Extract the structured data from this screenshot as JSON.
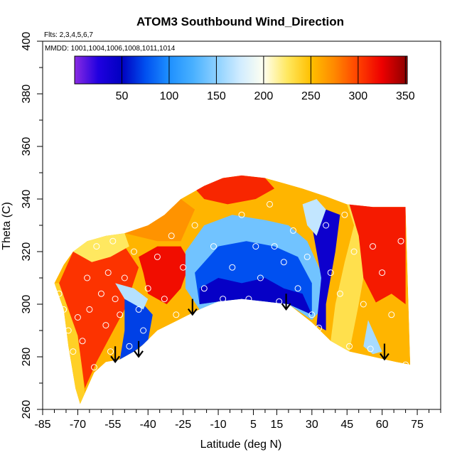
{
  "chart_data": {
    "type": "heatmap",
    "title": "ATOM3 Southbound Wind_Direction",
    "subtitle": "Flts: 2,3,4,5,6,7",
    "annotation": "MMDD: 1001,1004,1006,1008,1011,1014",
    "xlabel": "Latitude (deg N)",
    "ylabel": "Theta (C)",
    "xlim": [
      -85,
      85
    ],
    "ylim": [
      260,
      400
    ],
    "x_ticks": [
      "-85",
      "-70",
      "-55",
      "-40",
      "-25",
      "-10",
      "5",
      "15",
      "30",
      "45",
      "60",
      "75"
    ],
    "x_tick_values": [
      -85,
      -70,
      -55,
      -40,
      -25,
      -10,
      5,
      15,
      30,
      45,
      60,
      75
    ],
    "y_ticks": [
      "260",
      "280",
      "300",
      "320",
      "340",
      "360",
      "380",
      "400"
    ],
    "y_tick_values": [
      260,
      280,
      300,
      320,
      340,
      360,
      380,
      400
    ],
    "colorbar": {
      "range": [
        0,
        352
      ],
      "ticks": [
        "50",
        "100",
        "150",
        "200",
        "250",
        "300",
        "350"
      ],
      "tick_values": [
        50,
        100,
        150,
        200,
        250,
        300,
        350
      ],
      "colors": [
        {
          "value": 0,
          "color": "#8a2be2"
        },
        {
          "value": 25,
          "color": "#2000e0"
        },
        {
          "value": 50,
          "color": "#0000c0"
        },
        {
          "value": 75,
          "color": "#0050f0"
        },
        {
          "value": 100,
          "color": "#1e90ff"
        },
        {
          "value": 125,
          "color": "#48b0ff"
        },
        {
          "value": 150,
          "color": "#8cd0ff"
        },
        {
          "value": 175,
          "color": "#d0ecff"
        },
        {
          "value": 200,
          "color": "#fffff0"
        },
        {
          "value": 225,
          "color": "#ffe860"
        },
        {
          "value": 250,
          "color": "#ffc000"
        },
        {
          "value": 275,
          "color": "#ff8800"
        },
        {
          "value": 300,
          "color": "#ff4000"
        },
        {
          "value": 325,
          "color": "#ee0000"
        },
        {
          "value": 352,
          "color": "#8b0000"
        }
      ]
    },
    "upper_boundary": [
      {
        "lat": -80,
        "theta": 308
      },
      {
        "lat": -76,
        "theta": 315
      },
      {
        "lat": -72,
        "theta": 320
      },
      {
        "lat": -66,
        "theta": 324
      },
      {
        "lat": -58,
        "theta": 326
      },
      {
        "lat": -50,
        "theta": 327
      },
      {
        "lat": -40,
        "theta": 330
      },
      {
        "lat": -33,
        "theta": 334
      },
      {
        "lat": -26,
        "theta": 340
      },
      {
        "lat": -16,
        "theta": 345
      },
      {
        "lat": -8,
        "theta": 348
      },
      {
        "lat": 0,
        "theta": 349
      },
      {
        "lat": 10,
        "theta": 348
      },
      {
        "lat": 18,
        "theta": 346
      },
      {
        "lat": 26,
        "theta": 344
      },
      {
        "lat": 36,
        "theta": 341
      },
      {
        "lat": 45,
        "theta": 338
      },
      {
        "lat": 56,
        "theta": 337
      },
      {
        "lat": 65,
        "theta": 337
      },
      {
        "lat": 70,
        "theta": 337
      }
    ],
    "lower_boundary": [
      {
        "lat": -80,
        "theta": 308
      },
      {
        "lat": -76,
        "theta": 298
      },
      {
        "lat": -74,
        "theta": 284
      },
      {
        "lat": -71,
        "theta": 268
      },
      {
        "lat": -69,
        "theta": 262
      },
      {
        "lat": -67,
        "theta": 266
      },
      {
        "lat": -63,
        "theta": 274
      },
      {
        "lat": -58,
        "theta": 278
      },
      {
        "lat": -52,
        "theta": 279
      },
      {
        "lat": -44,
        "theta": 283
      },
      {
        "lat": -36,
        "theta": 290
      },
      {
        "lat": -27,
        "theta": 294
      },
      {
        "lat": -18,
        "theta": 298
      },
      {
        "lat": -10,
        "theta": 301
      },
      {
        "lat": 0,
        "theta": 302
      },
      {
        "lat": 10,
        "theta": 301
      },
      {
        "lat": 20,
        "theta": 300
      },
      {
        "lat": 30,
        "theta": 293
      },
      {
        "lat": 38,
        "theta": 286
      },
      {
        "lat": 46,
        "theta": 282
      },
      {
        "lat": 56,
        "theta": 280
      },
      {
        "lat": 66,
        "theta": 278
      },
      {
        "lat": 72,
        "theta": 277
      }
    ],
    "color_regions": [
      {
        "name": "southern-orange-edge",
        "value": 240,
        "points": [
          [
            -80,
            308
          ],
          [
            -76,
            298
          ],
          [
            -74,
            284
          ],
          [
            -71,
            268
          ],
          [
            -69,
            262
          ],
          [
            -67,
            266
          ],
          [
            -70,
            290
          ],
          [
            -74,
            308
          ]
        ]
      },
      {
        "name": "southern-red-core",
        "value": 305,
        "points": [
          [
            -78,
            308
          ],
          [
            -72,
            320
          ],
          [
            -60,
            324
          ],
          [
            -50,
            322
          ],
          [
            -44,
            314
          ],
          [
            -50,
            298
          ],
          [
            -56,
            288
          ],
          [
            -62,
            278
          ],
          [
            -67,
            268
          ],
          [
            -70,
            288
          ]
        ]
      },
      {
        "name": "southern-yellow-tongue",
        "value": 225,
        "points": [
          [
            -72,
            320
          ],
          [
            -66,
            324
          ],
          [
            -58,
            326
          ],
          [
            -50,
            327
          ],
          [
            -48,
            322
          ],
          [
            -56,
            318
          ],
          [
            -64,
            316
          ]
        ]
      },
      {
        "name": "southern-blue-pocket",
        "value": 70,
        "points": [
          [
            -50,
            304
          ],
          [
            -42,
            300
          ],
          [
            -38,
            296
          ],
          [
            -40,
            286
          ],
          [
            -46,
            282
          ],
          [
            -52,
            279
          ],
          [
            -50,
            290
          ]
        ]
      },
      {
        "name": "southern-light-pocket",
        "value": 165,
        "points": [
          [
            -54,
            308
          ],
          [
            -46,
            306
          ],
          [
            -40,
            302
          ],
          [
            -42,
            298
          ],
          [
            -50,
            302
          ]
        ]
      },
      {
        "name": "midlat-red",
        "value": 320,
        "points": [
          [
            -44,
            318
          ],
          [
            -36,
            322
          ],
          [
            -26,
            322
          ],
          [
            -22,
            316
          ],
          [
            -26,
            306
          ],
          [
            -32,
            300
          ],
          [
            -40,
            304
          ],
          [
            -42,
            312
          ]
        ]
      },
      {
        "name": "midlat-orange",
        "value": 270,
        "points": [
          [
            -50,
            327
          ],
          [
            -40,
            330
          ],
          [
            -33,
            334
          ],
          [
            -26,
            340
          ],
          [
            -20,
            336
          ],
          [
            -26,
            324
          ],
          [
            -36,
            324
          ]
        ]
      },
      {
        "name": "upper-red-band",
        "value": 310,
        "points": [
          [
            -20,
            344
          ],
          [
            -8,
            348
          ],
          [
            0,
            349
          ],
          [
            10,
            348
          ],
          [
            14,
            344
          ],
          [
            6,
            340
          ],
          [
            -6,
            338
          ],
          [
            -16,
            340
          ]
        ]
      },
      {
        "name": "tropical-light-blue",
        "value": 140,
        "points": [
          [
            -24,
            320
          ],
          [
            -16,
            330
          ],
          [
            -4,
            334
          ],
          [
            10,
            332
          ],
          [
            20,
            330
          ],
          [
            28,
            324
          ],
          [
            34,
            312
          ],
          [
            36,
            300
          ],
          [
            30,
            294
          ],
          [
            20,
            300
          ],
          [
            10,
            301
          ],
          [
            0,
            302
          ],
          [
            -10,
            301
          ],
          [
            -18,
            298
          ],
          [
            -24,
            306
          ]
        ]
      },
      {
        "name": "tropical-blue-core",
        "value": 75,
        "points": [
          [
            -20,
            312
          ],
          [
            -10,
            322
          ],
          [
            2,
            324
          ],
          [
            14,
            322
          ],
          [
            24,
            318
          ],
          [
            30,
            308
          ],
          [
            30,
            296
          ],
          [
            20,
            300
          ],
          [
            10,
            301
          ],
          [
            0,
            302
          ],
          [
            -10,
            301
          ],
          [
            -18,
            300
          ]
        ]
      },
      {
        "name": "tropical-deep-blue",
        "value": 45,
        "points": [
          [
            -18,
            306
          ],
          [
            -10,
            310
          ],
          [
            0,
            308
          ],
          [
            10,
            310
          ],
          [
            18,
            306
          ],
          [
            26,
            304
          ],
          [
            30,
            296
          ],
          [
            20,
            300
          ],
          [
            10,
            301
          ],
          [
            0,
            302
          ],
          [
            -10,
            301
          ],
          [
            -18,
            300
          ]
        ]
      },
      {
        "name": "northern-deep-blue-column",
        "value": 40,
        "points": [
          [
            30,
            330
          ],
          [
            36,
            336
          ],
          [
            42,
            334
          ],
          [
            40,
            320
          ],
          [
            36,
            300
          ],
          [
            36,
            290
          ],
          [
            32,
            292
          ],
          [
            34,
            310
          ]
        ]
      },
      {
        "name": "northern-light-column",
        "value": 170,
        "points": [
          [
            26,
            338
          ],
          [
            32,
            340
          ],
          [
            36,
            336
          ],
          [
            32,
            326
          ],
          [
            28,
            330
          ]
        ]
      },
      {
        "name": "northern-yellow",
        "value": 230,
        "points": [
          [
            36,
            341
          ],
          [
            45,
            338
          ],
          [
            48,
            330
          ],
          [
            44,
            316
          ],
          [
            40,
            300
          ],
          [
            38,
            286
          ],
          [
            46,
            282
          ],
          [
            50,
            300
          ],
          [
            54,
            320
          ],
          [
            52,
            336
          ]
        ]
      },
      {
        "name": "northern-red",
        "value": 315,
        "points": [
          [
            46,
            338
          ],
          [
            56,
            337
          ],
          [
            65,
            337
          ],
          [
            70,
            337
          ],
          [
            70,
            300
          ],
          [
            66,
            290
          ],
          [
            60,
            296
          ],
          [
            52,
            310
          ],
          [
            50,
            326
          ]
        ]
      },
      {
        "name": "arctic-orange",
        "value": 255,
        "points": [
          [
            50,
            300
          ],
          [
            56,
            286
          ],
          [
            60,
            282
          ],
          [
            66,
            280
          ],
          [
            72,
            278
          ],
          [
            70,
            300
          ],
          [
            64,
            304
          ],
          [
            56,
            300
          ]
        ]
      },
      {
        "name": "arctic-light-blue",
        "value": 160,
        "points": [
          [
            54,
            294
          ],
          [
            58,
            286
          ],
          [
            60,
            282
          ],
          [
            56,
            281
          ],
          [
            52,
            284
          ]
        ]
      }
    ],
    "sample_points": [
      {
        "lat": -78,
        "theta": 304
      },
      {
        "lat": -76,
        "theta": 298
      },
      {
        "lat": -74,
        "theta": 290
      },
      {
        "lat": -72,
        "theta": 282
      },
      {
        "lat": -70,
        "theta": 295
      },
      {
        "lat": -68,
        "theta": 286
      },
      {
        "lat": -66,
        "theta": 310
      },
      {
        "lat": -65,
        "theta": 298
      },
      {
        "lat": -63,
        "theta": 276
      },
      {
        "lat": -62,
        "theta": 322
      },
      {
        "lat": -60,
        "theta": 304
      },
      {
        "lat": -58,
        "theta": 292
      },
      {
        "lat": -57,
        "theta": 312
      },
      {
        "lat": -56,
        "theta": 282
      },
      {
        "lat": -55,
        "theta": 324
      },
      {
        "lat": -54,
        "theta": 302
      },
      {
        "lat": -52,
        "theta": 296
      },
      {
        "lat": -50,
        "theta": 310
      },
      {
        "lat": -48,
        "theta": 284
      },
      {
        "lat": -46,
        "theta": 320
      },
      {
        "lat": -44,
        "theta": 298
      },
      {
        "lat": -42,
        "theta": 290
      },
      {
        "lat": -40,
        "theta": 306
      },
      {
        "lat": -38,
        "theta": 284
      },
      {
        "lat": -36,
        "theta": 318
      },
      {
        "lat": -33,
        "theta": 302
      },
      {
        "lat": -30,
        "theta": 326
      },
      {
        "lat": -28,
        "theta": 296
      },
      {
        "lat": -25,
        "theta": 314
      },
      {
        "lat": -20,
        "theta": 330
      },
      {
        "lat": -16,
        "theta": 306
      },
      {
        "lat": -12,
        "theta": 322
      },
      {
        "lat": -8,
        "theta": 302
      },
      {
        "lat": -4,
        "theta": 314
      },
      {
        "lat": 0,
        "theta": 334
      },
      {
        "lat": 3,
        "theta": 302
      },
      {
        "lat": 6,
        "theta": 322
      },
      {
        "lat": 8,
        "theta": 310
      },
      {
        "lat": 12,
        "theta": 338
      },
      {
        "lat": 14,
        "theta": 322
      },
      {
        "lat": 16,
        "theta": 301
      },
      {
        "lat": 18,
        "theta": 316
      },
      {
        "lat": 22,
        "theta": 328
      },
      {
        "lat": 24,
        "theta": 306
      },
      {
        "lat": 28,
        "theta": 318
      },
      {
        "lat": 30,
        "theta": 296
      },
      {
        "lat": 33,
        "theta": 291
      },
      {
        "lat": 36,
        "theta": 330
      },
      {
        "lat": 38,
        "theta": 312
      },
      {
        "lat": 42,
        "theta": 304
      },
      {
        "lat": 44,
        "theta": 334
      },
      {
        "lat": 46,
        "theta": 284
      },
      {
        "lat": 48,
        "theta": 320
      },
      {
        "lat": 52,
        "theta": 300
      },
      {
        "lat": 55,
        "theta": 283
      },
      {
        "lat": 56,
        "theta": 322
      },
      {
        "lat": 60,
        "theta": 312
      },
      {
        "lat": 64,
        "theta": 296
      },
      {
        "lat": 68,
        "theta": 324
      },
      {
        "lat": 70,
        "theta": 277
      }
    ],
    "arrows": [
      {
        "lat": -54,
        "theta": 284
      },
      {
        "lat": -44,
        "theta": 286
      },
      {
        "lat": -21,
        "theta": 302
      },
      {
        "lat": 19,
        "theta": 304
      },
      {
        "lat": 61,
        "theta": 285
      }
    ]
  }
}
